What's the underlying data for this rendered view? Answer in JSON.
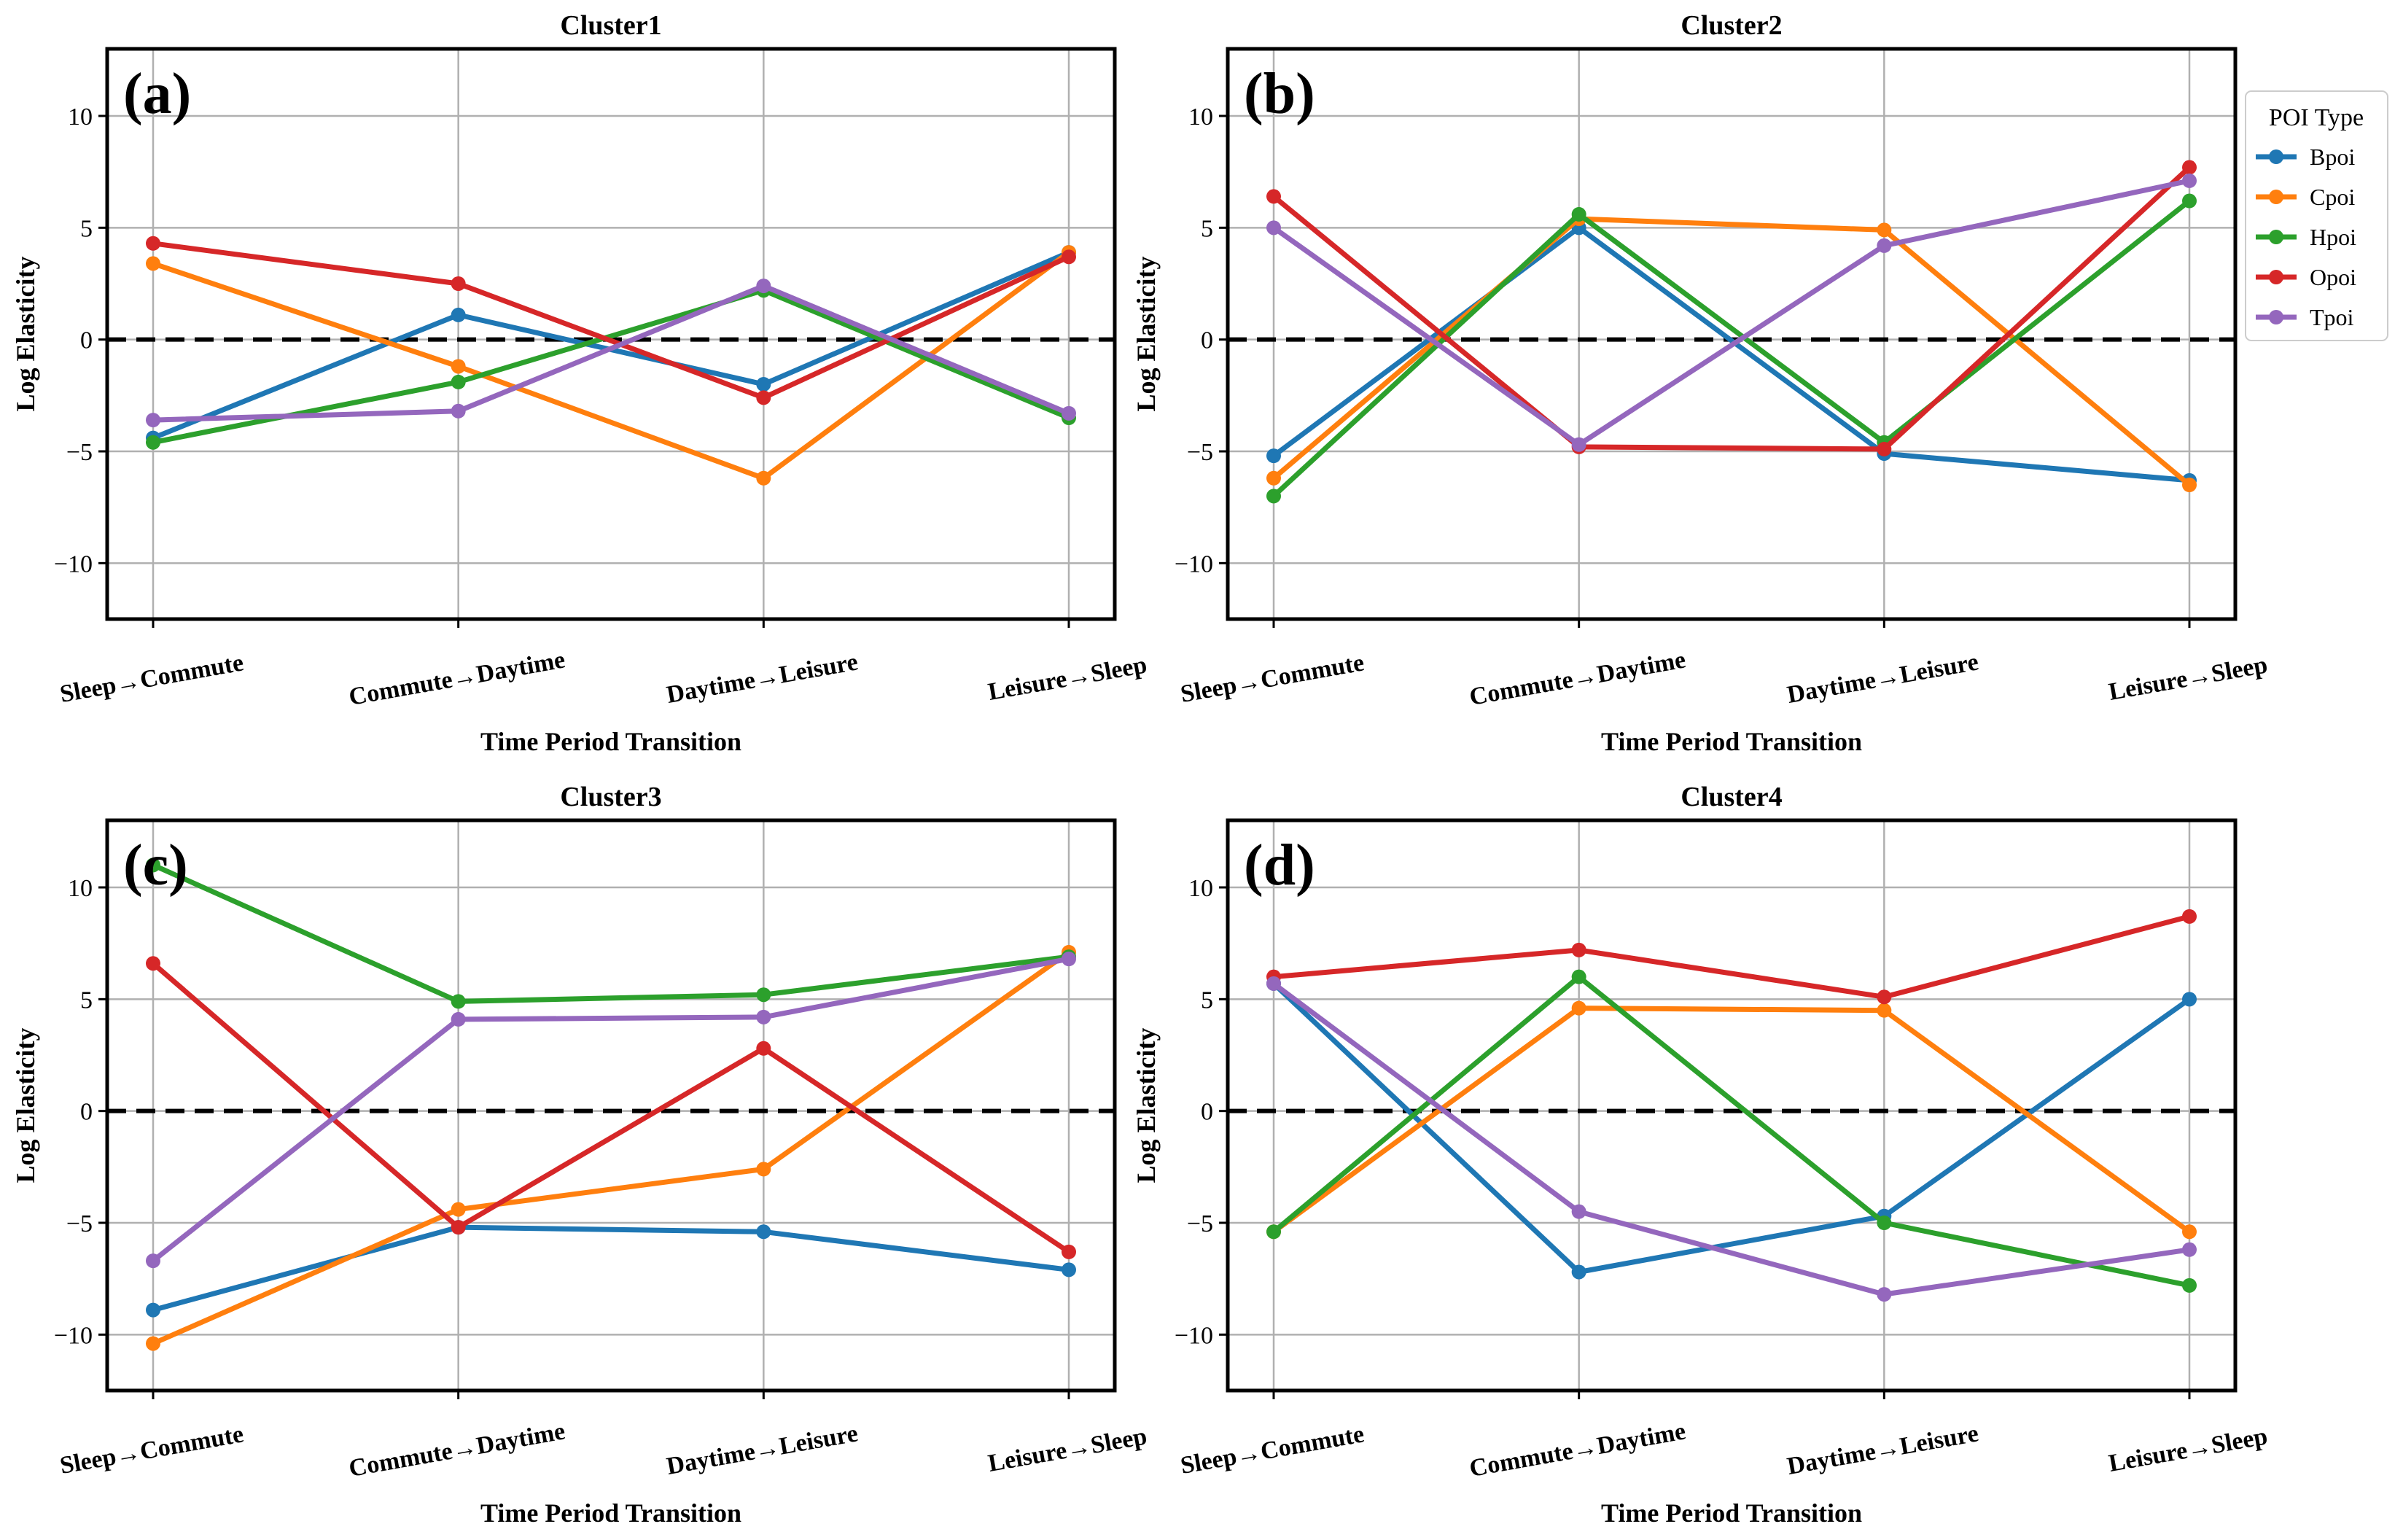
{
  "figure": {
    "legend": {
      "title": "POI Type",
      "placement": "right of top-right panel"
    }
  },
  "series_styles": [
    {
      "name": "Bpoi",
      "color": "#1f77b4"
    },
    {
      "name": "Cpoi",
      "color": "#ff7f0e"
    },
    {
      "name": "Hpoi",
      "color": "#2ca02c"
    },
    {
      "name": "Opoi",
      "color": "#d62728"
    },
    {
      "name": "Tpoi",
      "color": "#9467bd"
    }
  ],
  "chart_data": [
    {
      "type": "line",
      "title": "Cluster1",
      "panel_label": "(a)",
      "xlabel": "Time Period Transition",
      "ylabel": "Log Elasticity",
      "categories": [
        "Sleep→Commute",
        "Commute→Daytime",
        "Daytime→Leisure",
        "Leisure→Sleep"
      ],
      "ylim": [
        -12.5,
        13
      ],
      "yticks": [
        -10,
        -5,
        0,
        5,
        10
      ],
      "ytick_labels": [
        "−10",
        "−5",
        "0",
        "5",
        "10"
      ],
      "grid": true,
      "reference_line": 0,
      "series": [
        {
          "name": "Bpoi",
          "values": [
            -4.4,
            1.1,
            -2.0,
            3.9
          ]
        },
        {
          "name": "Cpoi",
          "values": [
            3.4,
            -1.2,
            -6.2,
            3.9
          ]
        },
        {
          "name": "Hpoi",
          "values": [
            -4.6,
            -1.9,
            2.2,
            -3.5
          ]
        },
        {
          "name": "Opoi",
          "values": [
            4.3,
            2.5,
            -2.6,
            3.7
          ]
        },
        {
          "name": "Tpoi",
          "values": [
            -3.6,
            -3.2,
            2.4,
            -3.3
          ]
        }
      ]
    },
    {
      "type": "line",
      "title": "Cluster2",
      "panel_label": "(b)",
      "xlabel": "Time Period Transition",
      "ylabel": "Log Elasticity",
      "categories": [
        "Sleep→Commute",
        "Commute→Daytime",
        "Daytime→Leisure",
        "Leisure→Sleep"
      ],
      "ylim": [
        -12.5,
        13
      ],
      "yticks": [
        -10,
        -5,
        0,
        5,
        10
      ],
      "ytick_labels": [
        "−10",
        "−5",
        "0",
        "5",
        "10"
      ],
      "grid": true,
      "reference_line": 0,
      "series": [
        {
          "name": "Bpoi",
          "values": [
            -5.2,
            5.0,
            -5.1,
            -6.3
          ]
        },
        {
          "name": "Cpoi",
          "values": [
            -6.2,
            5.4,
            4.9,
            -6.5
          ]
        },
        {
          "name": "Hpoi",
          "values": [
            -7.0,
            5.6,
            -4.6,
            6.2
          ]
        },
        {
          "name": "Opoi",
          "values": [
            6.4,
            -4.8,
            -4.9,
            7.7
          ]
        },
        {
          "name": "Tpoi",
          "values": [
            5.0,
            -4.7,
            4.2,
            7.1
          ]
        }
      ]
    },
    {
      "type": "line",
      "title": "Cluster3",
      "panel_label": "(c)",
      "xlabel": "Time Period Transition",
      "ylabel": "Log Elasticity",
      "categories": [
        "Sleep→Commute",
        "Commute→Daytime",
        "Daytime→Leisure",
        "Leisure→Sleep"
      ],
      "ylim": [
        -12.5,
        13
      ],
      "yticks": [
        -10,
        -5,
        0,
        5,
        10
      ],
      "ytick_labels": [
        "−10",
        "−5",
        "0",
        "5",
        "10"
      ],
      "grid": true,
      "reference_line": 0,
      "series": [
        {
          "name": "Bpoi",
          "values": [
            -8.9,
            -5.2,
            -5.4,
            -7.1
          ]
        },
        {
          "name": "Cpoi",
          "values": [
            -10.4,
            -4.4,
            -2.6,
            7.1
          ]
        },
        {
          "name": "Hpoi",
          "values": [
            11.0,
            4.9,
            5.2,
            6.9
          ]
        },
        {
          "name": "Opoi",
          "values": [
            6.6,
            -5.2,
            2.8,
            -6.3
          ]
        },
        {
          "name": "Tpoi",
          "values": [
            -6.7,
            4.1,
            4.2,
            6.8
          ]
        }
      ]
    },
    {
      "type": "line",
      "title": "Cluster4",
      "panel_label": "(d)",
      "xlabel": "Time Period Transition",
      "ylabel": "Log Elasticity",
      "categories": [
        "Sleep→Commute",
        "Commute→Daytime",
        "Daytime→Leisure",
        "Leisure→Sleep"
      ],
      "ylim": [
        -12.5,
        13
      ],
      "yticks": [
        -10,
        -5,
        0,
        5,
        10
      ],
      "ytick_labels": [
        "−10",
        "−5",
        "0",
        "5",
        "10"
      ],
      "grid": true,
      "reference_line": 0,
      "series": [
        {
          "name": "Bpoi",
          "values": [
            5.7,
            -7.2,
            -4.7,
            5.0
          ]
        },
        {
          "name": "Cpoi",
          "values": [
            -5.4,
            4.6,
            4.5,
            -5.4
          ]
        },
        {
          "name": "Hpoi",
          "values": [
            -5.4,
            6.0,
            -5.0,
            -7.8
          ]
        },
        {
          "name": "Opoi",
          "values": [
            6.0,
            7.2,
            5.1,
            8.7
          ]
        },
        {
          "name": "Tpoi",
          "values": [
            5.7,
            -4.5,
            -8.2,
            -6.2
          ]
        }
      ]
    }
  ]
}
